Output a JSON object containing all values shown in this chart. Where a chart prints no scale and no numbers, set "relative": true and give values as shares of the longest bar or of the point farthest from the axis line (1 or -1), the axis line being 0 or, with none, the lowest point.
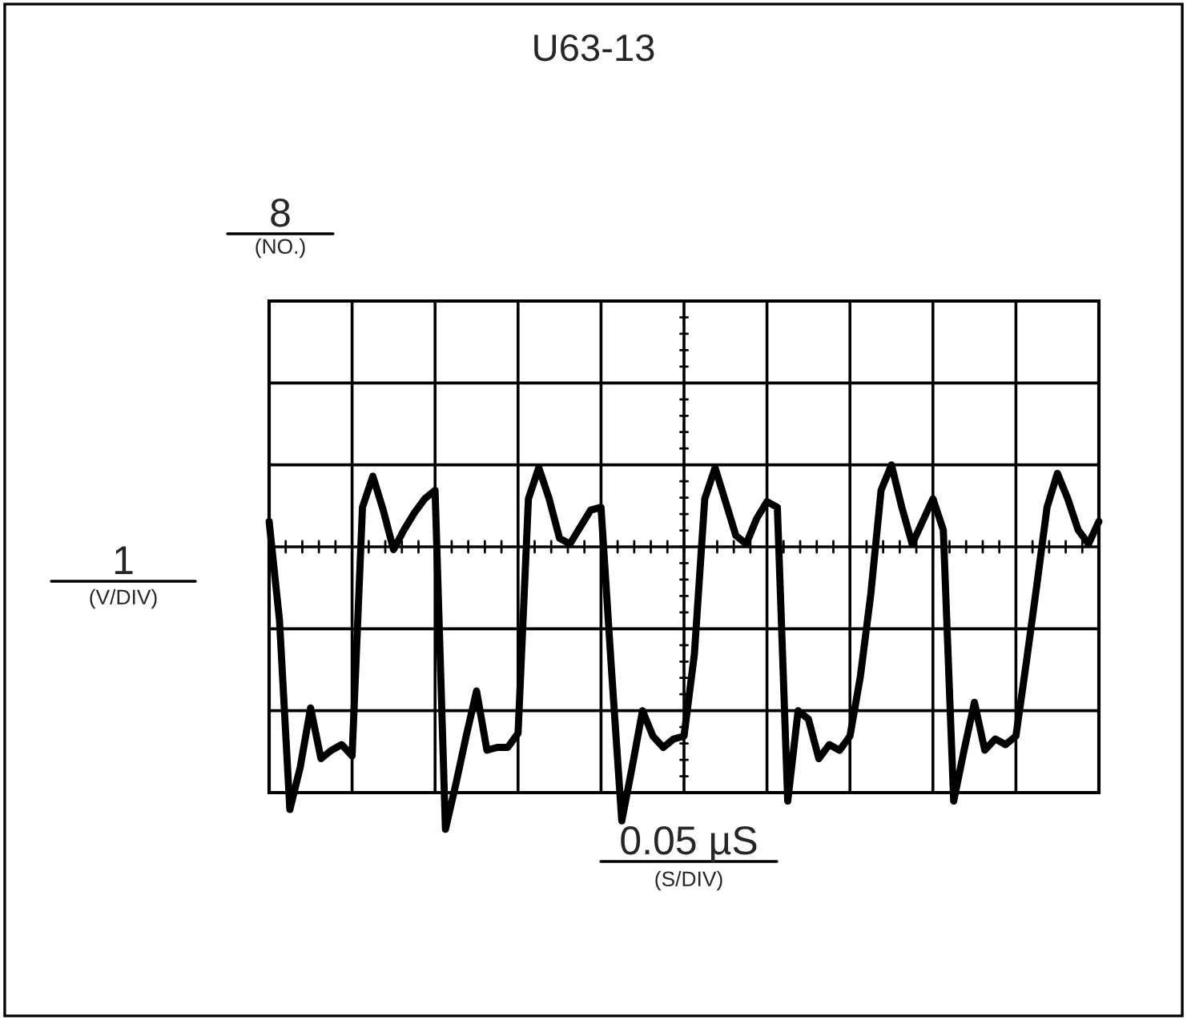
{
  "chart_data": {
    "type": "line",
    "title": "U63-13",
    "relative": true,
    "grid": true,
    "tick_labels": false,
    "color": "#000000",
    "annotations": [
      "8",
      "(NO.)",
      "1",
      "(V/DIV)",
      "0.05 µS",
      "(S/DIV)"
    ],
    "categories": [
      null,
      null,
      null,
      null,
      null,
      null,
      null,
      null,
      null,
      null,
      null,
      null,
      null,
      null,
      null,
      null,
      null,
      null,
      null,
      null,
      null,
      null,
      null,
      null,
      null,
      null,
      null,
      null,
      null,
      null,
      null,
      null,
      null,
      null,
      null,
      null,
      null,
      null,
      null,
      null,
      null,
      null,
      null,
      null,
      null,
      null,
      null,
      null,
      null,
      null,
      null,
      null,
      null,
      null,
      null,
      null,
      null,
      null,
      null,
      null,
      null,
      null,
      null,
      null,
      null,
      null,
      null,
      null,
      null,
      null,
      null,
      null,
      null,
      null,
      null,
      null,
      null,
      null,
      null,
      null,
      null
    ],
    "values": [
      0.09,
      -0.26,
      -0.93,
      -0.78,
      -0.57,
      -0.75,
      -0.72,
      -0.7,
      -0.74,
      0.14,
      0.25,
      0.13,
      -0.01,
      0.06,
      0.12,
      0.17,
      0.2,
      -1,
      -0.84,
      -0.67,
      -0.51,
      -0.72,
      -0.71,
      -0.71,
      -0.66,
      0.17,
      0.28,
      0.17,
      0.03,
      0.01,
      0.07,
      0.13,
      0.14,
      -0.43,
      -0.97,
      -0.78,
      -0.58,
      -0.67,
      -0.71,
      -0.68,
      -0.67,
      -0.38,
      0.17,
      0.28,
      0.16,
      0.04,
      0.01,
      0.1,
      0.16,
      0.14,
      -0.9,
      -0.58,
      -0.61,
      -0.75,
      -0.7,
      -0.72,
      -0.67,
      -0.46,
      -0.17,
      0.2,
      0.29,
      0.14,
      0.01,
      0.09,
      0.17,
      0.06,
      -0.9,
      -0.72,
      -0.55,
      -0.72,
      -0.68,
      -0.7,
      -0.67,
      -0.41,
      -0.14,
      0.14,
      0.26,
      0.17,
      0.06,
      0.01,
      0.09
    ]
  }
}
